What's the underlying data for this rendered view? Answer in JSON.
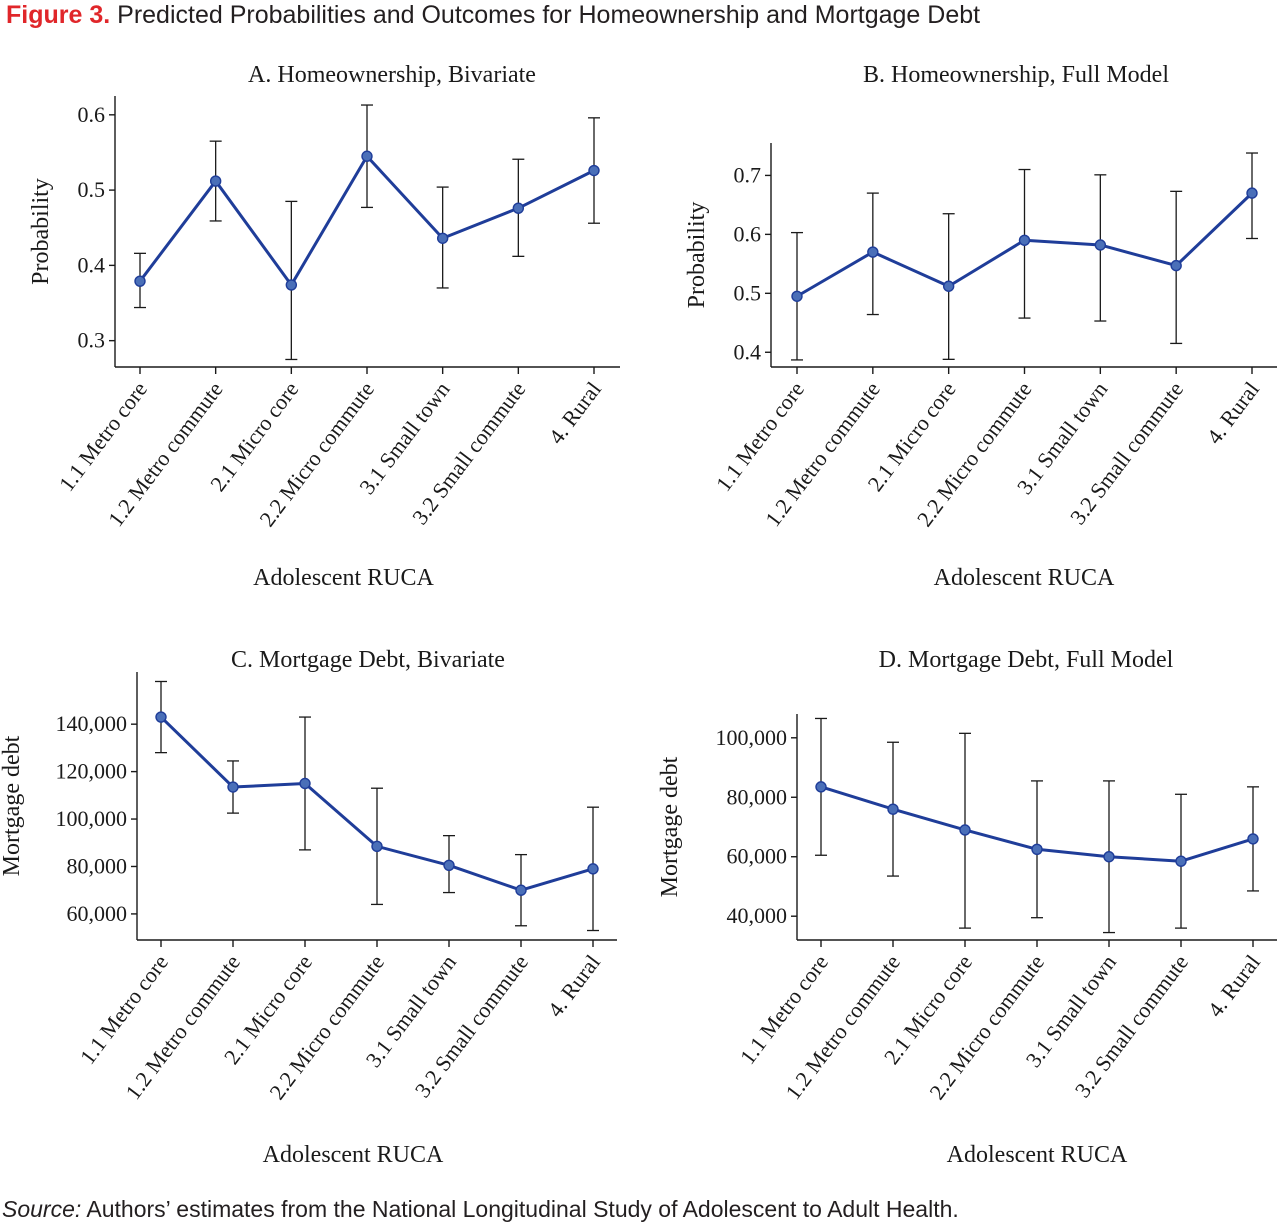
{
  "figure": {
    "label": "Figure 3.",
    "title": "Predicted Probabilities and Outcomes for Homeownership and Mortgage Debt"
  },
  "source": {
    "label": "Source:",
    "text": "Authors’ estimates from the National Longitudinal Study of Adolescent to Adult Health."
  },
  "colors": {
    "line": "#1f3d99",
    "marker": "#4a6fb8",
    "errorbar": "#1a1a1a",
    "axis": "#1a1a1a",
    "label_red": "#e0262a"
  },
  "chart_data": [
    {
      "type": "line",
      "title": "A. Homeownership, Bivariate",
      "xlabel": "Adolescent RUCA",
      "ylabel": "Probability",
      "categories": [
        "1.1 Metro core",
        "1.2 Metro commute",
        "2.1 Micro core",
        "2.2 Micro commute",
        "3.1 Small town",
        "3.2 Small commute",
        "4. Rural"
      ],
      "values": [
        0.379,
        0.512,
        0.374,
        0.545,
        0.436,
        0.476,
        0.526
      ],
      "lower": [
        0.344,
        0.459,
        0.275,
        0.477,
        0.37,
        0.412,
        0.456
      ],
      "upper": [
        0.416,
        0.565,
        0.485,
        0.613,
        0.504,
        0.541,
        0.596
      ],
      "yticks": [
        0.3,
        0.4,
        0.5,
        0.6
      ],
      "yticklabels": [
        "0.3",
        "0.4",
        "0.5",
        "0.6"
      ],
      "ylim": [
        0.265,
        0.625
      ],
      "grid": false
    },
    {
      "type": "line",
      "title": "B. Homeownership, Full Model",
      "xlabel": "Adolescent RUCA",
      "ylabel": "Probability",
      "categories": [
        "1.1 Metro core",
        "1.2 Metro commute",
        "2.1 Micro core",
        "2.2 Micro commute",
        "3.1 Small town",
        "3.2 Small commute",
        "4. Rural"
      ],
      "values": [
        0.495,
        0.57,
        0.512,
        0.59,
        0.582,
        0.547,
        0.67
      ],
      "lower": [
        0.387,
        0.464,
        0.388,
        0.458,
        0.453,
        0.415,
        0.593
      ],
      "upper": [
        0.603,
        0.67,
        0.635,
        0.71,
        0.701,
        0.673,
        0.738
      ],
      "yticks": [
        0.4,
        0.5,
        0.6,
        0.7
      ],
      "yticklabels": [
        "0.4",
        "0.5",
        "0.6",
        "0.7"
      ],
      "ylim": [
        0.375,
        0.755
      ],
      "grid": false
    },
    {
      "type": "line",
      "title": "C. Mortgage Debt, Bivariate",
      "xlabel": "Adolescent RUCA",
      "ylabel": "Mortgage debt",
      "categories": [
        "1.1 Metro core",
        "1.2 Metro commute",
        "2.1 Micro core",
        "2.2 Micro commute",
        "3.1 Small town",
        "3.2 Small commute",
        "4. Rural"
      ],
      "values": [
        143000,
        113500,
        115000,
        88500,
        80500,
        70000,
        79000
      ],
      "lower": [
        128000,
        102500,
        87000,
        64000,
        69000,
        55000,
        53000
      ],
      "upper": [
        158000,
        124500,
        143000,
        113000,
        93000,
        85000,
        105000
      ],
      "yticks": [
        60000,
        80000,
        100000,
        120000,
        140000
      ],
      "yticklabels": [
        "60,000",
        "80,000",
        "100,000",
        "120,000",
        "140,000"
      ],
      "ylim": [
        49000,
        162000
      ],
      "grid": false
    },
    {
      "type": "line",
      "title": "D. Mortgage Debt, Full Model",
      "xlabel": "Adolescent RUCA",
      "ylabel": "Mortgage debt",
      "categories": [
        "1.1 Metro core",
        "1.2 Metro commute",
        "2.1 Micro core",
        "2.2 Micro commute",
        "3.1 Small town",
        "3.2 Small commute",
        "4. Rural"
      ],
      "values": [
        83500,
        76000,
        69000,
        62500,
        60000,
        58500,
        66000
      ],
      "lower": [
        60500,
        53500,
        36000,
        39500,
        34500,
        36000,
        48500
      ],
      "upper": [
        106500,
        98500,
        101500,
        85500,
        85500,
        81000,
        83500
      ],
      "yticks": [
        40000,
        60000,
        80000,
        100000
      ],
      "yticklabels": [
        "40,000",
        "60,000",
        "80,000",
        "100,000"
      ],
      "ylim": [
        32000,
        108000
      ],
      "grid": false
    }
  ]
}
